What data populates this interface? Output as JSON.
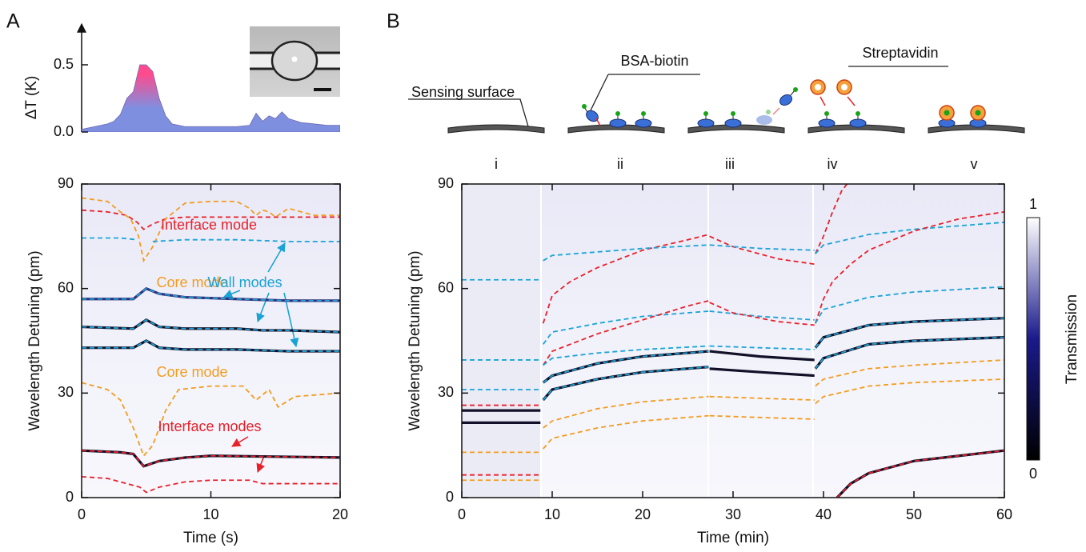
{
  "panels": [
    "A",
    "B"
  ],
  "diagram": {
    "labels": [
      "Sensing surface",
      "BSA-biotin",
      "Streptavidin"
    ],
    "stages": [
      "i",
      "ii",
      "iii",
      "iv",
      "v"
    ]
  },
  "chart_data": [
    {
      "type": "area",
      "y_label": "ΔT (K)",
      "colors": [
        "#7f8fe0",
        "#ff4a8d"
      ],
      "x": [
        0,
        0.5,
        1,
        1.5,
        2,
        2.5,
        3,
        3.5,
        4,
        4.5,
        5,
        5.5,
        6,
        6.5,
        7,
        8,
        9,
        10,
        11,
        12,
        13,
        13.5,
        14,
        14.5,
        15,
        15.5,
        16,
        17,
        18,
        19,
        20
      ],
      "values": [
        0.02,
        0.03,
        0.04,
        0.05,
        0.06,
        0.08,
        0.13,
        0.25,
        0.3,
        0.5,
        0.5,
        0.45,
        0.25,
        0.12,
        0.06,
        0.04,
        0.04,
        0.04,
        0.04,
        0.04,
        0.05,
        0.14,
        0.08,
        0.12,
        0.1,
        0.15,
        0.1,
        0.07,
        0.06,
        0.05,
        0.05
      ],
      "xlim": [
        0,
        20
      ],
      "ylim": [
        0,
        0.6
      ],
      "yticks": [
        {
          "value": 0,
          "label": "0.0"
        },
        0.5
      ]
    },
    {
      "type": "line",
      "x_label": "Time (s)",
      "y_label": "Wavelength Detuning (pm)",
      "xlim": [
        0,
        20
      ],
      "ylim": [
        0,
        90
      ],
      "xticks": [
        0,
        10,
        20
      ],
      "yticks": [
        0,
        30,
        60,
        90
      ],
      "annotations": [
        {
          "text": "Interface mode",
          "color": "#e8202a"
        },
        {
          "text": "Core mode",
          "color": "#f39c1f"
        },
        {
          "text": "Wall modes",
          "color": "#1ca3d6"
        },
        {
          "text": "Core mode",
          "color": "#f39c1f"
        },
        {
          "text": "Interface modes",
          "color": "#e8202a"
        }
      ],
      "series": [
        {
          "color": "#e8202a",
          "x": [
            0,
            2,
            3.5,
            4.3,
            4.8,
            5.5,
            6.5,
            8,
            12,
            16,
            20
          ],
          "values": [
            82.5,
            82,
            81,
            79,
            77,
            78.5,
            80,
            80.5,
            80.5,
            80.5,
            80.5
          ]
        },
        {
          "color": "#f39c1f",
          "x": [
            0,
            2,
            3,
            3.8,
            4.4,
            4.8,
            5.5,
            6.5,
            8,
            10,
            12,
            13,
            13.5,
            14,
            14.5,
            15,
            16,
            18,
            20
          ],
          "values": [
            86,
            85,
            82,
            80,
            75,
            68,
            72,
            80,
            84.5,
            85,
            85,
            83,
            81,
            82.5,
            82,
            80.5,
            83,
            81,
            81
          ]
        },
        {
          "color": "#1ca3d6",
          "x": [
            0,
            3,
            4.3,
            4.7,
            5.5,
            8,
            12,
            16,
            20
          ],
          "values": [
            74.5,
            74.5,
            74,
            null,
            73.5,
            74,
            74,
            73.5,
            73.5
          ]
        },
        {
          "color": "#30307a",
          "dashed": false,
          "x": [
            0,
            4,
            5,
            6,
            8,
            12,
            16,
            20
          ],
          "values": [
            57,
            57,
            60,
            58.5,
            57.5,
            57,
            56.5,
            56.5
          ]
        },
        {
          "color": "#1ca3d6",
          "x": [
            0,
            4,
            5,
            6,
            8,
            12,
            16,
            20
          ],
          "values": [
            57,
            57,
            60,
            58.5,
            57.5,
            57,
            56.5,
            56.5
          ]
        },
        {
          "color": "#101028",
          "dashed": false,
          "x": [
            0,
            4,
            5,
            6,
            8,
            12,
            14,
            16,
            20
          ],
          "values": [
            49,
            48.5,
            51,
            49,
            48.5,
            48.5,
            48,
            48,
            47.5
          ]
        },
        {
          "color": "#1ca3d6",
          "x": [
            0,
            4,
            5,
            6,
            8,
            12,
            14,
            16,
            20
          ],
          "values": [
            49,
            48.5,
            51,
            49,
            48.5,
            48.5,
            48,
            48,
            47.5
          ]
        },
        {
          "color": "#101028",
          "dashed": false,
          "x": [
            0,
            4,
            5,
            6,
            8,
            12,
            16,
            20
          ],
          "values": [
            43,
            43,
            45,
            43,
            42.5,
            42.5,
            42,
            42
          ]
        },
        {
          "color": "#1ca3d6",
          "x": [
            0,
            4,
            5,
            6,
            8,
            12,
            16,
            20
          ],
          "values": [
            43,
            43,
            45,
            43,
            42.5,
            42.5,
            42,
            42
          ]
        },
        {
          "color": "#f39c1f",
          "x": [
            0,
            2,
            3,
            4,
            4.8,
            5.5,
            6.5,
            7.5,
            10,
            12.5,
            13.5,
            14.5,
            15.2,
            16.5,
            20
          ],
          "values": [
            33,
            31,
            28,
            20,
            12,
            15,
            25,
            31,
            32,
            32,
            28,
            31,
            26,
            29,
            30
          ]
        },
        {
          "color": "#101028",
          "dashed": false,
          "x": [
            0,
            3,
            4,
            4.8,
            6,
            8,
            10,
            20
          ],
          "values": [
            13.5,
            13,
            12.5,
            9,
            10.5,
            11.5,
            12,
            11.5
          ]
        },
        {
          "color": "#e8202a",
          "x": [
            0,
            3,
            4,
            4.8,
            6,
            8,
            10,
            20
          ],
          "values": [
            13.5,
            13,
            12.5,
            9,
            10.5,
            11.5,
            12,
            11.5
          ]
        },
        {
          "color": "#e8202a",
          "x": [
            0,
            2,
            3,
            4.5,
            5,
            6,
            8,
            10,
            13,
            14,
            20
          ],
          "values": [
            6,
            5.5,
            4.5,
            3,
            1.5,
            3,
            4.5,
            5,
            5,
            4,
            4
          ]
        }
      ]
    },
    {
      "type": "line",
      "x_label": "Time (min)",
      "y_label": "Wavelength Detuning (pm)",
      "xlim": [
        0,
        60
      ],
      "ylim": [
        0,
        90
      ],
      "xticks": [
        0,
        10,
        20,
        30,
        40,
        50,
        60
      ],
      "yticks": [
        0,
        30,
        60,
        90
      ],
      "colorbar": {
        "label": "Transmission",
        "ticks": [
          0,
          1
        ],
        "colors": [
          "#000000",
          "#1a1a8c",
          "#ffffff"
        ]
      },
      "series": [
        {
          "color": "#f39c1f",
          "x": [
            0,
            8.7
          ],
          "values": [
            5,
            5
          ]
        },
        {
          "color": "#f39c1f",
          "x": [
            0,
            8.7
          ],
          "values": [
            13,
            13
          ]
        },
        {
          "color": "#e8202a",
          "x": [
            0,
            8.7
          ],
          "values": [
            6.5,
            6.5
          ]
        },
        {
          "color": "#101028",
          "dashed": false,
          "x": [
            0,
            8.7
          ],
          "values": [
            21.5,
            21.5
          ]
        },
        {
          "color": "#101028",
          "dashed": false,
          "x": [
            0,
            8.7
          ],
          "values": [
            25,
            25
          ]
        },
        {
          "color": "#e8202a",
          "x": [
            0,
            8.7
          ],
          "values": [
            26.5,
            26.5
          ]
        },
        {
          "color": "#1ca3d6",
          "x": [
            0,
            8.7
          ],
          "values": [
            31,
            31
          ]
        },
        {
          "color": "#1ca3d6",
          "x": [
            0,
            8.7
          ],
          "values": [
            39.5,
            39.5
          ]
        },
        {
          "color": "#1ca3d6",
          "x": [
            0,
            8.7
          ],
          "values": [
            62.5,
            62.5
          ]
        },
        {
          "color": "#e8202a",
          "x": [
            9,
            10,
            12,
            15,
            20,
            25,
            27.3
          ],
          "values": [
            50,
            58,
            62,
            66,
            71,
            74,
            75.5
          ]
        },
        {
          "color": "#1ca3d6",
          "x": [
            9,
            10,
            15,
            20,
            27.3
          ],
          "values": [
            68,
            69.5,
            70.5,
            71.5,
            72.5
          ]
        },
        {
          "color": "#1ca3d6",
          "x": [
            9,
            10,
            15,
            20,
            27.3
          ],
          "values": [
            44,
            47.5,
            50,
            52,
            53.5
          ]
        },
        {
          "color": "#e8202a",
          "x": [
            9,
            10,
            15,
            20,
            25,
            27.3
          ],
          "values": [
            38,
            42,
            47,
            51,
            55,
            56.5
          ]
        },
        {
          "color": "#1ca3d6",
          "x": [
            9,
            10,
            15,
            20,
            27.3
          ],
          "values": [
            38,
            40,
            41.5,
            42.5,
            43.5
          ]
        },
        {
          "color": "#101028",
          "dashed": false,
          "x": [
            9,
            10,
            15,
            20,
            27.3
          ],
          "values": [
            33,
            35,
            38.5,
            40.5,
            42
          ]
        },
        {
          "color": "#1ca3d6",
          "x": [
            9,
            10,
            15,
            20,
            27.3
          ],
          "values": [
            33,
            35,
            38.5,
            40.5,
            42
          ]
        },
        {
          "color": "#101028",
          "dashed": false,
          "x": [
            9,
            10,
            15,
            20,
            27.3
          ],
          "values": [
            28,
            31,
            34,
            36,
            37.5
          ]
        },
        {
          "color": "#1ca3d6",
          "x": [
            9,
            10,
            15,
            20,
            27.3
          ],
          "values": [
            28,
            31,
            34,
            36,
            37.5
          ]
        },
        {
          "color": "#f39c1f",
          "x": [
            9,
            10,
            15,
            20,
            27.3
          ],
          "values": [
            20,
            22,
            25.5,
            27.5,
            29
          ]
        },
        {
          "color": "#f39c1f",
          "x": [
            9,
            10,
            15,
            20,
            27.3
          ],
          "values": [
            14,
            17,
            20,
            22,
            23.5
          ]
        },
        {
          "color": "#e8202a",
          "x": [
            27.4,
            30,
            35,
            39
          ],
          "values": [
            75,
            72,
            68.5,
            67
          ]
        },
        {
          "color": "#1ca3d6",
          "x": [
            27.4,
            33,
            39
          ],
          "values": [
            72.5,
            71.5,
            71
          ]
        },
        {
          "color": "#1ca3d6",
          "x": [
            27.4,
            33,
            39
          ],
          "values": [
            53.5,
            52,
            51
          ]
        },
        {
          "color": "#e8202a",
          "x": [
            27.4,
            30,
            35,
            39
          ],
          "values": [
            56,
            53,
            50.5,
            49.5
          ]
        },
        {
          "color": "#1ca3d6",
          "x": [
            27.4,
            33,
            39
          ],
          "values": [
            43.5,
            43,
            42.5
          ]
        },
        {
          "color": "#101028",
          "dashed": false,
          "x": [
            27.4,
            33,
            39
          ],
          "values": [
            42,
            40.5,
            39.5
          ]
        },
        {
          "color": "#101028",
          "dashed": false,
          "x": [
            27.4,
            33,
            39
          ],
          "values": [
            37,
            36,
            35
          ]
        },
        {
          "color": "#f39c1f",
          "x": [
            27.4,
            33,
            39
          ],
          "values": [
            29,
            28.5,
            28
          ]
        },
        {
          "color": "#f39c1f",
          "x": [
            27.4,
            33,
            39
          ],
          "values": [
            23.5,
            23,
            22.5
          ]
        },
        {
          "color": "#e8202a",
          "x": [
            39.1,
            40,
            41,
            42,
            42.6
          ],
          "values": [
            70,
            75,
            82,
            88,
            90
          ]
        },
        {
          "color": "#1ca3d6",
          "x": [
            39.1,
            40,
            45,
            50,
            55,
            60
          ],
          "values": [
            70,
            72.5,
            75.5,
            77,
            78,
            79
          ]
        },
        {
          "color": "#e8202a",
          "x": [
            39.1,
            40,
            41,
            43,
            45,
            50,
            55,
            60
          ],
          "values": [
            50,
            57,
            62,
            67,
            71,
            76.5,
            80,
            82
          ]
        },
        {
          "color": "#1ca3d6",
          "x": [
            39.1,
            40,
            45,
            50,
            60
          ],
          "values": [
            50,
            54,
            57.5,
            59,
            60.5
          ]
        },
        {
          "color": "#101028",
          "dashed": false,
          "x": [
            39.1,
            40,
            45,
            50,
            60
          ],
          "values": [
            43,
            46,
            49.5,
            50.5,
            51.5
          ]
        },
        {
          "color": "#1ca3d6",
          "x": [
            39.1,
            40,
            45,
            50,
            60
          ],
          "values": [
            43,
            46,
            49.5,
            50.5,
            51.5
          ]
        },
        {
          "color": "#101028",
          "dashed": false,
          "x": [
            39.1,
            40,
            45,
            50,
            60
          ],
          "values": [
            37,
            40,
            44,
            45,
            46
          ]
        },
        {
          "color": "#1ca3d6",
          "x": [
            39.1,
            40,
            45,
            50,
            60
          ],
          "values": [
            37,
            40,
            44,
            45,
            46
          ]
        },
        {
          "color": "#f39c1f",
          "x": [
            39.1,
            40,
            45,
            50,
            60
          ],
          "values": [
            32,
            34,
            37,
            38,
            39.5
          ]
        },
        {
          "color": "#f39c1f",
          "x": [
            39.1,
            40,
            45,
            50,
            60
          ],
          "values": [
            27,
            29,
            32,
            33,
            34
          ]
        },
        {
          "color": "#101028",
          "dashed": false,
          "x": [
            41.5,
            43,
            45,
            50,
            55,
            60
          ],
          "values": [
            0,
            4,
            7,
            10.5,
            12,
            13.5
          ]
        },
        {
          "color": "#e8202a",
          "x": [
            41.5,
            43,
            45,
            50,
            55,
            60
          ],
          "values": [
            0,
            4,
            7,
            10.5,
            12,
            13.5
          ]
        }
      ]
    }
  ]
}
